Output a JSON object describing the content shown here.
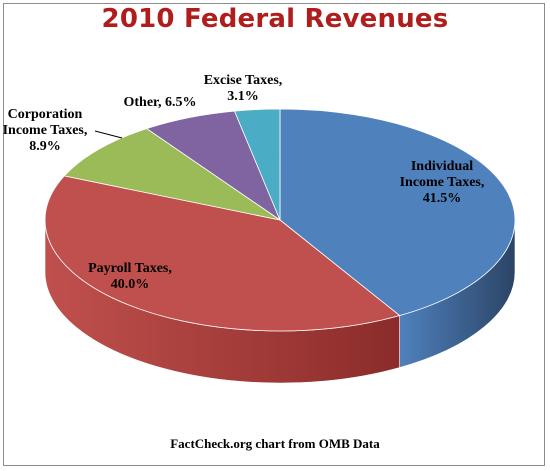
{
  "chart_data": {
    "type": "pie",
    "title": "2010 Federal Revenues",
    "source": "FactCheck.org chart from OMB Data",
    "slices": [
      {
        "label_lines": [
          "Individual",
          "Income Taxes,",
          "41.5%"
        ],
        "name": "Individual Income Taxes",
        "value": 41.5,
        "color": "#4f81bd",
        "side_color": "#2b4466"
      },
      {
        "label_lines": [
          "Payroll Taxes,",
          "40.0%"
        ],
        "name": "Payroll Taxes",
        "value": 40.0,
        "color": "#c0504d",
        "side_color": "#8b2c2a"
      },
      {
        "label_lines": [
          "Corporation",
          "Income Taxes,",
          "8.9%"
        ],
        "name": "Corporation Income Taxes",
        "value": 8.9,
        "color": "#9bbb59",
        "side_color": "#647a35"
      },
      {
        "label_lines": [
          "Other, 6.5%"
        ],
        "name": "Other",
        "value": 6.5,
        "color": "#8064a2",
        "side_color": "#4f3d66"
      },
      {
        "label_lines": [
          "Excise Taxes,",
          "3.1%"
        ],
        "name": "Excise Taxes",
        "value": 3.1,
        "color": "#4bacc6",
        "side_color": "#2a6c7e"
      }
    ]
  }
}
